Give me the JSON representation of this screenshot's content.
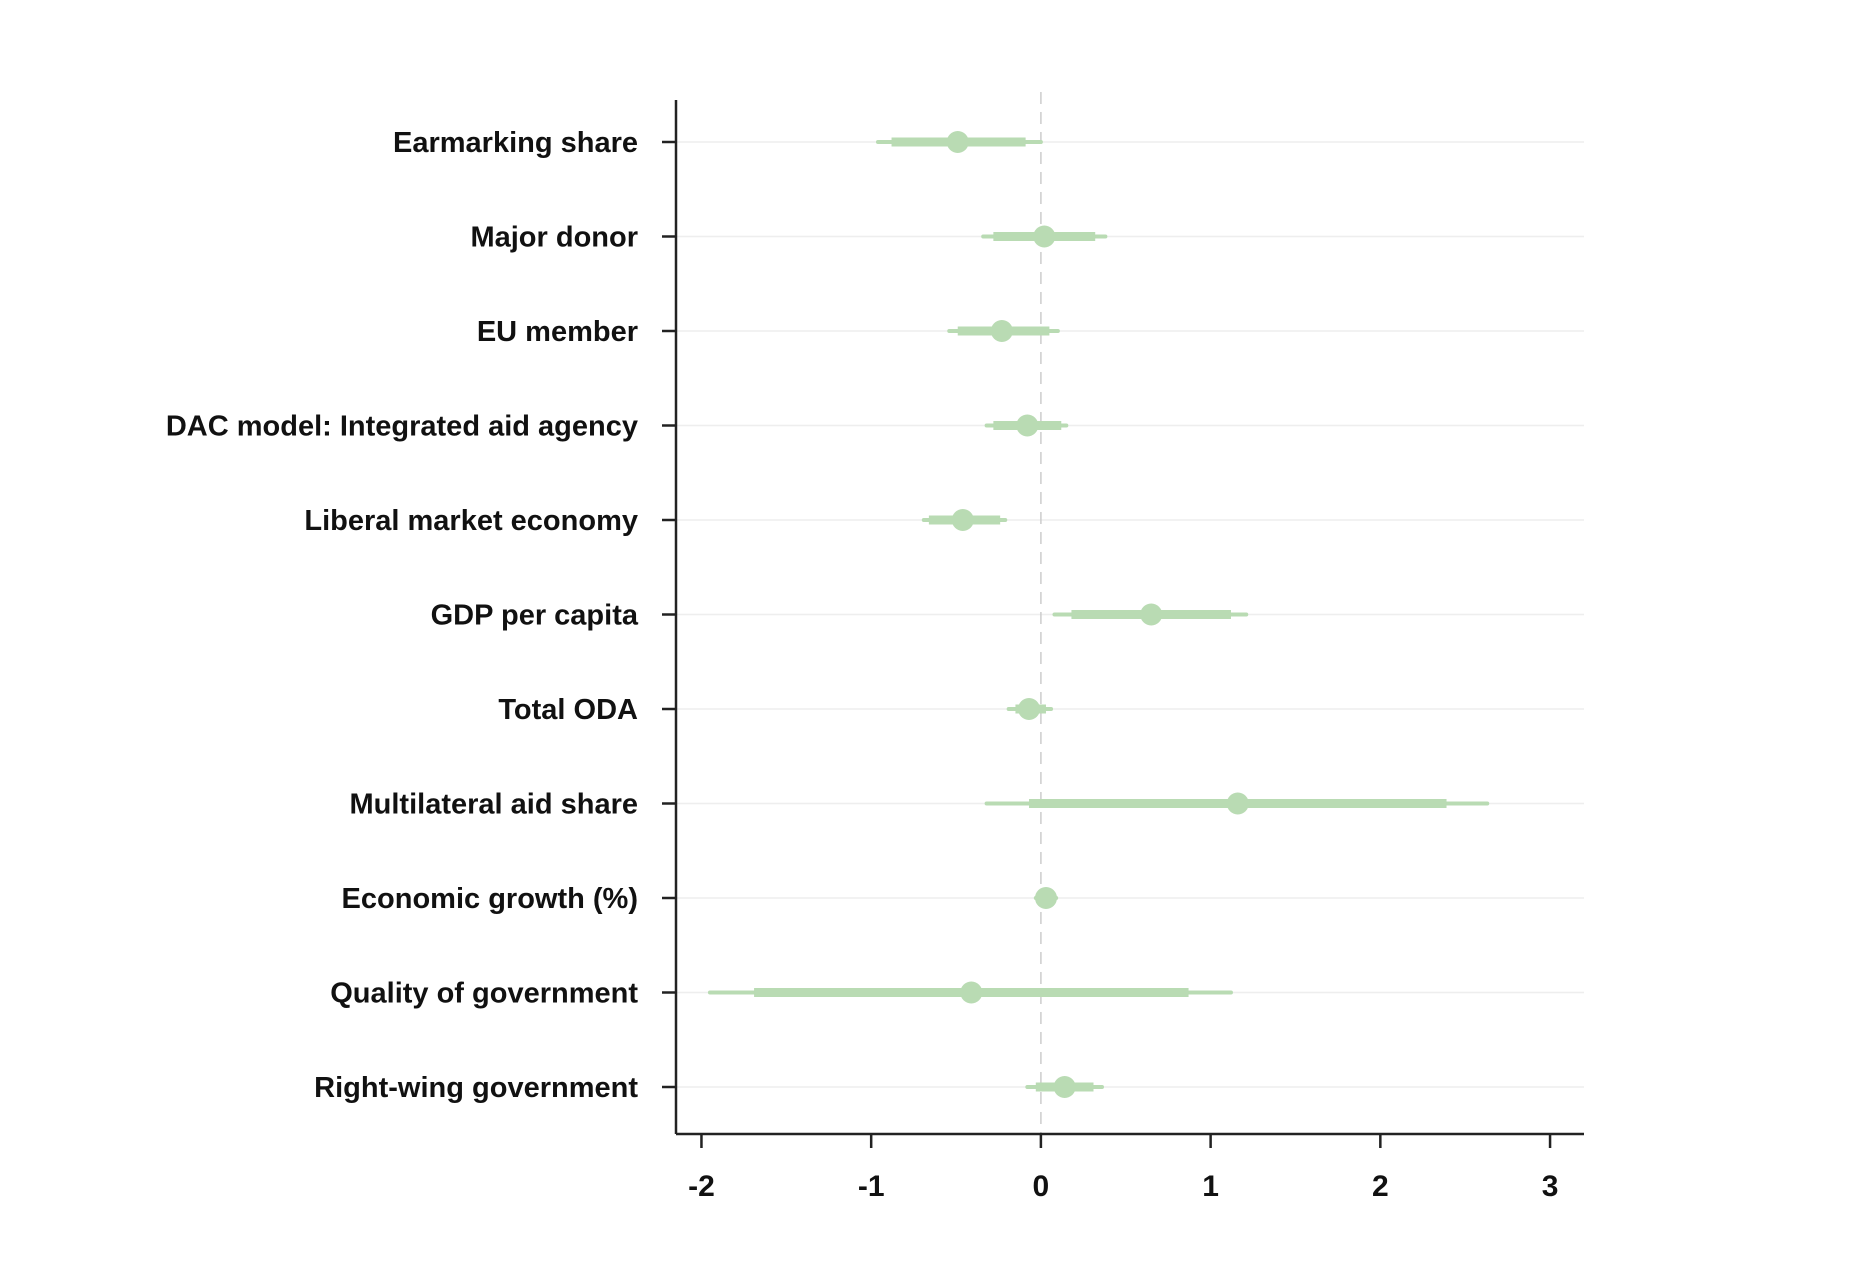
{
  "chart_data": {
    "type": "coefficient-plot",
    "title": "",
    "xlabel": "",
    "ylabel": "",
    "xlim": [
      -2.15,
      3.2
    ],
    "xticks": [
      {
        "value": -2,
        "label": "-2"
      },
      {
        "value": -1,
        "label": "-1"
      },
      {
        "value": 0,
        "label": "0"
      },
      {
        "value": 1,
        "label": "1"
      },
      {
        "value": 2,
        "label": "2"
      },
      {
        "value": 3,
        "label": "3"
      }
    ],
    "reference_line": 0,
    "grid": "horizontal",
    "colors": {
      "marker": "#b9dbb3",
      "axis": "#222222",
      "grid": "#eeeeee",
      "refline": "#cccccc"
    },
    "rows": [
      {
        "label": "Earmarking share",
        "estimate": -0.49,
        "ci90": [
          -0.88,
          -0.09
        ],
        "ci95": [
          -0.96,
          0.0
        ]
      },
      {
        "label": "Major donor",
        "estimate": 0.02,
        "ci90": [
          -0.28,
          0.32
        ],
        "ci95": [
          -0.34,
          0.38
        ]
      },
      {
        "label": "EU member",
        "estimate": -0.23,
        "ci90": [
          -0.49,
          0.05
        ],
        "ci95": [
          -0.54,
          0.1
        ]
      },
      {
        "label": "DAC model: Integrated aid agency",
        "estimate": -0.08,
        "ci90": [
          -0.28,
          0.12
        ],
        "ci95": [
          -0.32,
          0.15
        ]
      },
      {
        "label": "Liberal market economy",
        "estimate": -0.46,
        "ci90": [
          -0.66,
          -0.24
        ],
        "ci95": [
          -0.69,
          -0.21
        ]
      },
      {
        "label": "GDP per capita",
        "estimate": 0.65,
        "ci90": [
          0.18,
          1.12
        ],
        "ci95": [
          0.08,
          1.21
        ]
      },
      {
        "label": "Total ODA",
        "estimate": -0.07,
        "ci90": [
          -0.15,
          0.03
        ],
        "ci95": [
          -0.19,
          0.06
        ]
      },
      {
        "label": "Multilateral aid share",
        "estimate": 1.16,
        "ci90": [
          -0.07,
          2.39
        ],
        "ci95": [
          -0.32,
          2.63
        ]
      },
      {
        "label": "Economic growth (%)",
        "estimate": 0.03,
        "ci90": [
          -0.02,
          0.07
        ],
        "ci95": [
          -0.03,
          0.09
        ]
      },
      {
        "label": "Quality of government",
        "estimate": -0.41,
        "ci90": [
          -1.69,
          0.87
        ],
        "ci95": [
          -1.95,
          1.12
        ]
      },
      {
        "label": "Right-wing government",
        "estimate": 0.14,
        "ci90": [
          -0.03,
          0.31
        ],
        "ci95": [
          -0.08,
          0.36
        ]
      }
    ]
  }
}
